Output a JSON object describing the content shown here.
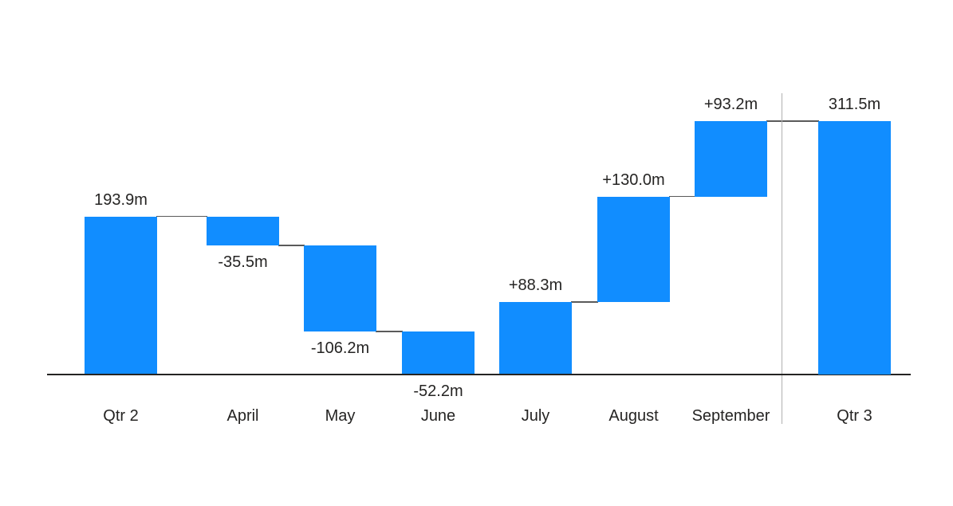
{
  "chart_data": {
    "type": "waterfall",
    "title": "",
    "xlabel": "",
    "ylabel": "",
    "ylim": [
      0,
      311.5
    ],
    "grid": false,
    "legend": "none",
    "categories": [
      "Qtr 2",
      "April",
      "May",
      "June",
      "July",
      "August",
      "September",
      "Qtr 3"
    ],
    "bars": [
      {
        "category": "Qtr 2",
        "value": 193.9,
        "role": "total",
        "label": "193.9m",
        "label_position": "above"
      },
      {
        "category": "April",
        "value": -35.5,
        "role": "decrease",
        "label": "-35.5m",
        "label_position": "below"
      },
      {
        "category": "May",
        "value": -106.2,
        "role": "decrease",
        "label": "-106.2m",
        "label_position": "below"
      },
      {
        "category": "June",
        "value": -52.2,
        "role": "decrease",
        "label": "-52.2m",
        "label_position": "below"
      },
      {
        "category": "July",
        "value": 88.3,
        "role": "increase",
        "label": "+88.3m",
        "label_position": "above"
      },
      {
        "category": "August",
        "value": 130.0,
        "role": "increase",
        "label": "+130.0m",
        "label_position": "above"
      },
      {
        "category": "September",
        "value": 93.2,
        "role": "increase",
        "label": "+93.2m",
        "label_position": "above"
      },
      {
        "category": "Qtr 3",
        "value": 311.5,
        "role": "total",
        "label": "311.5m",
        "label_position": "above"
      }
    ],
    "separator_between": [
      "September",
      "Qtr 3"
    ],
    "colors": {
      "bar": "#118DFF",
      "connector": "#5A5A5A",
      "axis": "#252423",
      "separator": "#B0B0B0",
      "label_text": "#252423"
    }
  }
}
